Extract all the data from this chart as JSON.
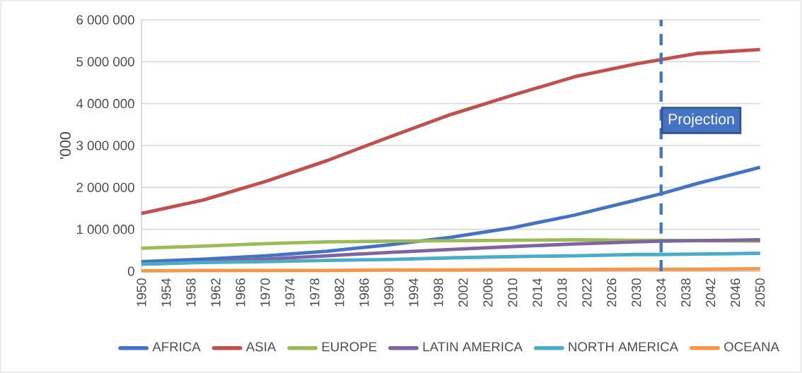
{
  "chart_data": {
    "type": "line",
    "ylabel": "'000",
    "x": [
      1950,
      1960,
      1970,
      1980,
      1990,
      2000,
      2010,
      2020,
      2030,
      2034,
      2040,
      2050
    ],
    "series": [
      {
        "name": "AFRICA",
        "color": "#4472c4",
        "values": [
          230000,
          290000,
          370000,
          480000,
          630000,
          810000,
          1040000,
          1340000,
          1700000,
          1850000,
          2100000,
          2480000
        ]
      },
      {
        "name": "ASIA",
        "color": "#c0504d",
        "values": [
          1380000,
          1700000,
          2140000,
          2640000,
          3200000,
          3740000,
          4200000,
          4640000,
          4950000,
          5050000,
          5200000,
          5290000
        ]
      },
      {
        "name": "EUROPE",
        "color": "#9bbb59",
        "values": [
          550000,
          600000,
          660000,
          700000,
          720000,
          730000,
          740000,
          750000,
          740000,
          740000,
          730000,
          720000
        ]
      },
      {
        "name": "LATIN AMERICA",
        "color": "#8064a2",
        "values": [
          170000,
          220000,
          290000,
          370000,
          450000,
          520000,
          590000,
          650000,
          700000,
          720000,
          730000,
          750000
        ]
      },
      {
        "name": "NORTH AMERICA",
        "color": "#4bacc6",
        "values": [
          170000,
          210000,
          230000,
          260000,
          280000,
          320000,
          350000,
          370000,
          400000,
          400000,
          410000,
          430000
        ]
      },
      {
        "name": "OCEANA",
        "color": "#f79646",
        "values": [
          10000,
          20000,
          20000,
          20000,
          30000,
          30000,
          40000,
          40000,
          50000,
          50000,
          50000,
          60000
        ]
      }
    ],
    "xlim": [
      1950,
      2050
    ],
    "xticks": [
      1950,
      1954,
      1958,
      1962,
      1966,
      1970,
      1974,
      1978,
      1982,
      1986,
      1990,
      1994,
      1998,
      2002,
      2006,
      2010,
      2014,
      2018,
      2022,
      2026,
      2030,
      2034,
      2038,
      2042,
      2046,
      2050
    ],
    "ylim": [
      0,
      6000000
    ],
    "yticks": [
      {
        "value": 0,
        "label": "0"
      },
      {
        "value": 1000000,
        "label": "1 000 000"
      },
      {
        "value": 2000000,
        "label": "2 000 000"
      },
      {
        "value": 3000000,
        "label": "3 000 000"
      },
      {
        "value": 4000000,
        "label": "4 000 000"
      },
      {
        "value": 5000000,
        "label": "5 000 000"
      },
      {
        "value": 6000000,
        "label": "6 000 000"
      }
    ],
    "grid": "y",
    "legend": "bottom",
    "ref_lines": [
      {
        "axis": "x",
        "value": 2034,
        "label": "Projection",
        "color": "#4472c4",
        "line_style": "dashed"
      }
    ]
  }
}
